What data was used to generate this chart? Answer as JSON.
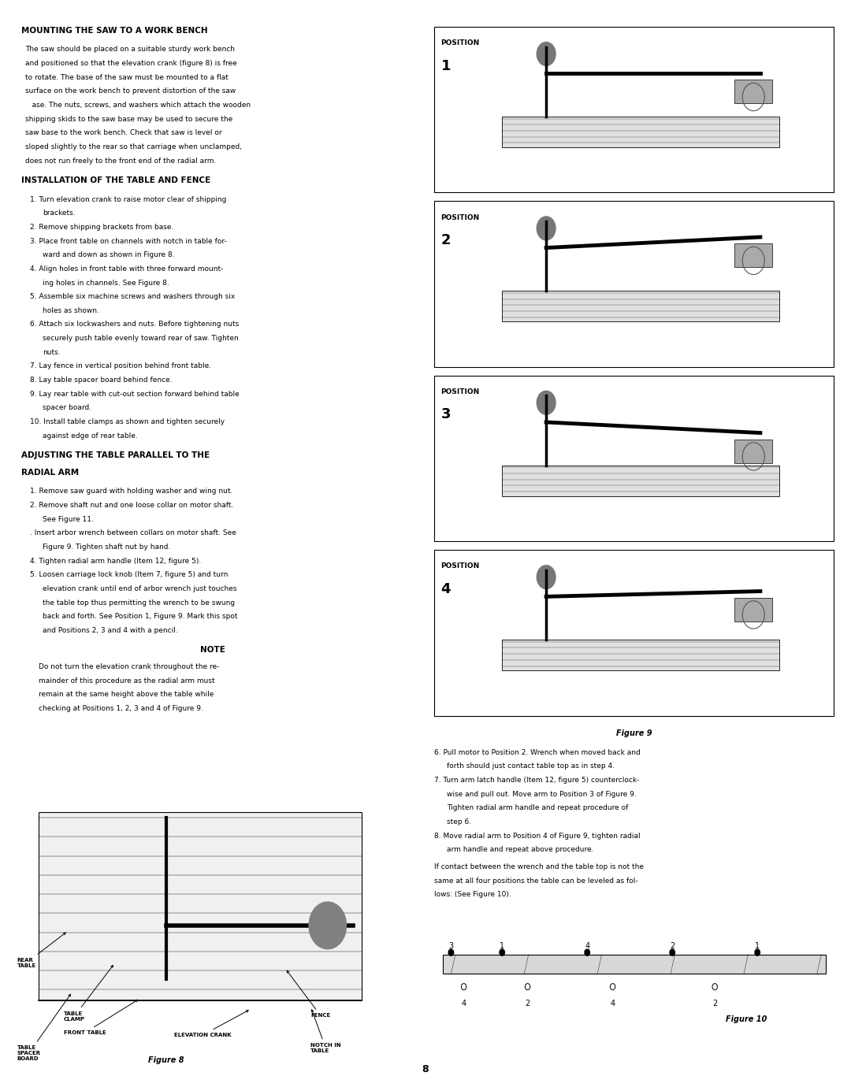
{
  "page_bg": "#ffffff",
  "text_color": "#000000",
  "page_width": 10.8,
  "page_height": 13.66,
  "section1_title": "MOUNTING THE SAW TO A WORK BENCH",
  "section1_body": "The saw should be placed on a suitable sturdy work bench\nand positioned so that the elevation crank (figure 8) is free\nto rotate. The base of the saw must be mounted to a flat\nsurface on the work bench to prevent distortion of the saw\n   ase. The nuts, screws, and washers which attach the wooden\nshipping skids to the saw base may be used to secure the\nsaw base to the work bench. Check that saw is level or\nsloped slightly to the rear so that carriage when unclamped,\ndoes not run freely to the front end of the radial arm.",
  "section2_title": "INSTALLATION OF THE TABLE AND FENCE",
  "section2_items": [
    "Turn elevation crank to raise motor clear of shipping\n      brackets.",
    "Remove shipping brackets from base.",
    "Place front table on channels with notch in table for-\n      ward and down as shown in Figure 8.",
    "Align holes in front table with three forward mount-\n      ing holes in channels. See Figure 8.",
    "Assemble six machine screws and washers through six\n      holes as shown.",
    "Attach six lockwashers and nuts. Before tightening nuts\n      securely push table evenly toward rear of saw. Tighten\n      nuts.",
    "Lay fence in vertical position behind front table.",
    "Lay table spacer board behind fence.",
    "Lay rear table with cut-out section forward behind table\n      spacer board.",
    "Install table clamps as shown and tighten securely\n      against edge of rear table."
  ],
  "section3_title": "ADJUSTING THE TABLE PARALLEL TO THE\nRADIAL ARM",
  "section3_items": [
    "Remove saw guard with holding washer and wing nut.",
    "Remove shaft nut and one loose collar on motor shaft.\n      See Figure 11.",
    ". Insert arbor wrench between collars on motor shaft. See\n      Figure 9. Tighten shaft nut by hand.",
    "Tighten radial arm handle (Item 12, figure 5).",
    "Loosen carriage lock knob (Item 7, figure 5) and turn\n      elevation crank until end of arbor wrench just touches\n      the table top thus permitting the wrench to be swung\n      back and forth. See Position 1, Figure 9. Mark this spot\n      and Positions 2, 3 and 4 with a pencil."
  ],
  "note_title": "NOTE",
  "note_body": "Do not turn the elevation crank throughout the re-\nmainder of this procedure as the radial arm must\nremain at the same height above the table while\nchecking at Positions 1, 2, 3 and 4 of Figure 9.",
  "right_items_6_8": [
    "Pull motor to Position 2. Wrench when moved back and\n   forth should just contact table top as in step 4.",
    "Turn arm latch handle (Item 12, figure 5) counterclock-\n   wise and pull out. Move arm to Position 3 of Figure 9.\n   Tighten radial arm handle and repeat procedure of\n   step 6.",
    "Move radial arm to Position 4 of Figure 9, tighten radial\n   arm handle and repeat above procedure."
  ],
  "right_final": "If contact between the wrench and the table top is not the\nsame at all four positions the table can be leveled as fol-\nlows: (See Figure 10).",
  "page_number": "8",
  "fig8_caption": "Figure 8",
  "fig9_caption": "Figure 9",
  "fig10_caption": "Figure 10",
  "positions": [
    "POSITION\n1",
    "POSITION\n2",
    "POSITION\n3",
    "POSITION\n4"
  ]
}
